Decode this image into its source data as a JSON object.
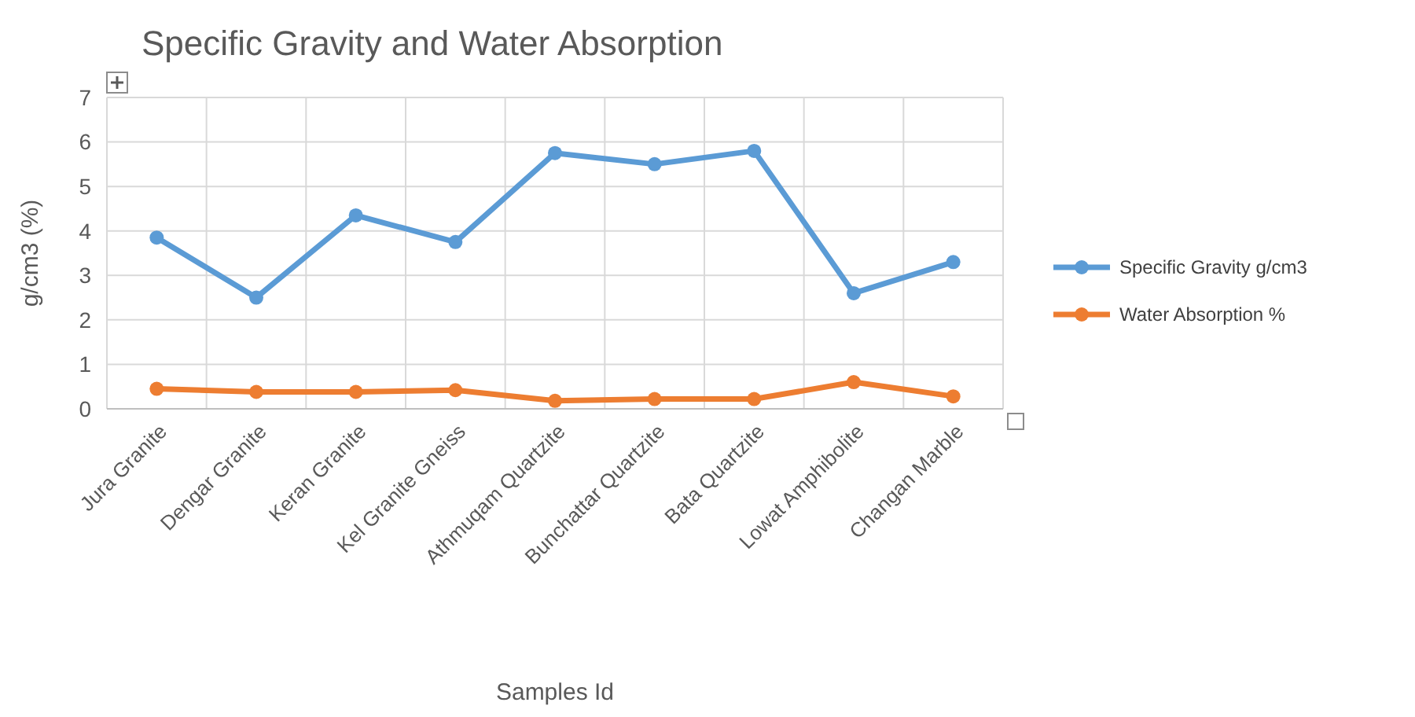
{
  "chart_data": {
    "type": "line",
    "title": "Specific Gravity and Water Absorption",
    "xlabel": "Samples Id",
    "ylabel": "g/cm3  (%)",
    "categories": [
      "Jura Granite",
      "Dengar Granite",
      "Keran Granite",
      "Kel Granite Gneiss",
      "Athmuqam Quartzite",
      "Bunchattar Quartzite",
      "Bata Quartzite",
      "Lowat Amphibolite",
      "Changan Marble"
    ],
    "series": [
      {
        "name": "Specific Gravity g/cm3",
        "color": "#5b9bd5",
        "values": [
          3.85,
          2.5,
          4.35,
          3.75,
          5.75,
          5.5,
          5.8,
          2.6,
          3.3
        ]
      },
      {
        "name": "Water Absorption %",
        "color": "#ed7d31",
        "values": [
          0.45,
          0.38,
          0.38,
          0.42,
          0.18,
          0.22,
          0.22,
          0.6,
          0.28
        ]
      }
    ],
    "ylim": [
      0,
      7
    ],
    "yticks": [
      0,
      1,
      2,
      3,
      4,
      5,
      6,
      7
    ],
    "grid": true,
    "legend": "right",
    "marker": "circle",
    "line_style": "solid"
  }
}
